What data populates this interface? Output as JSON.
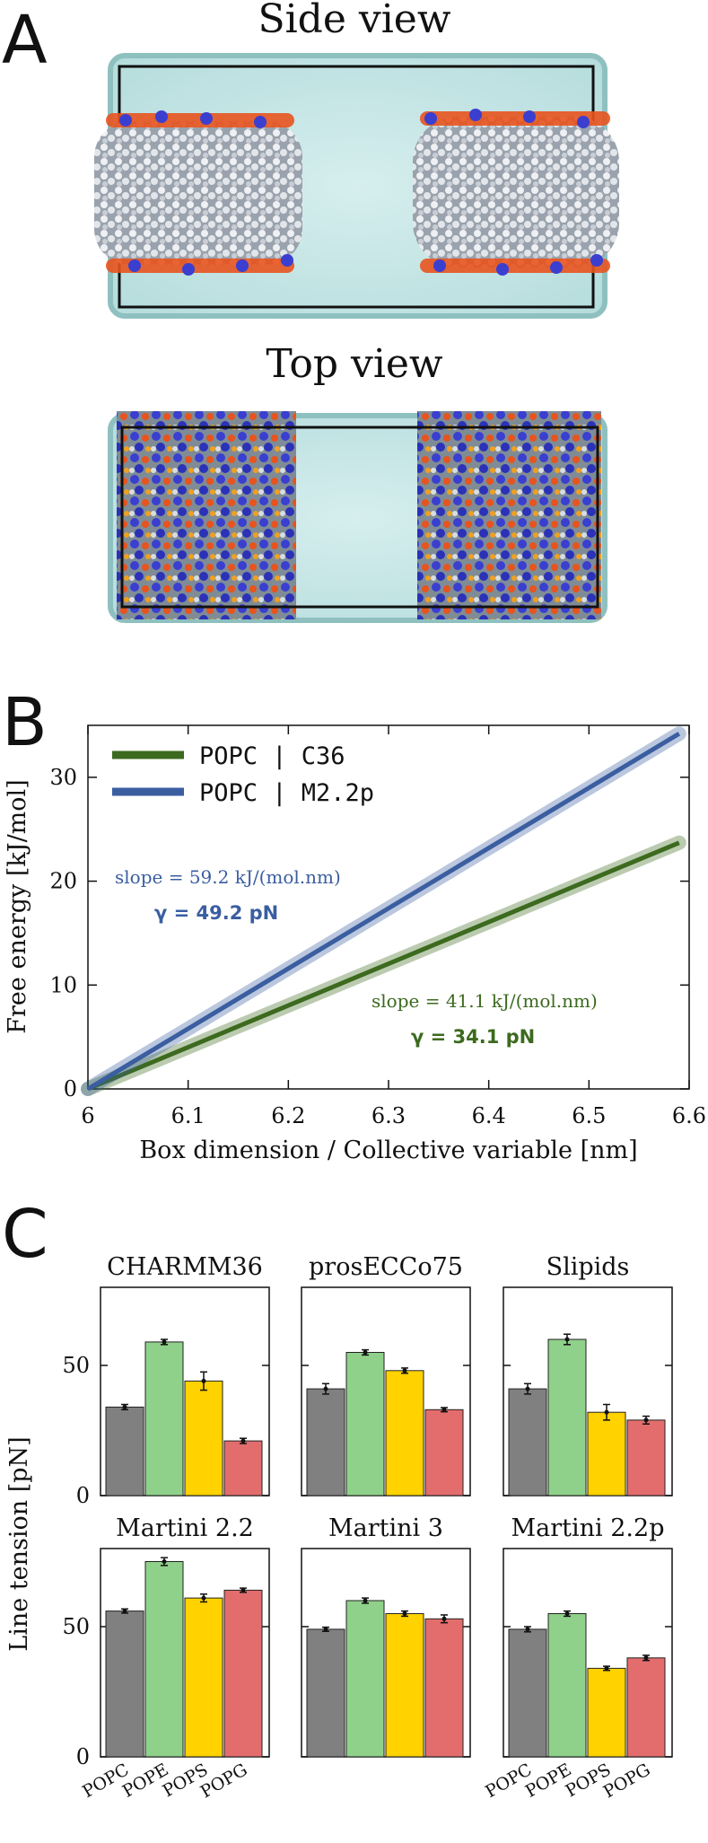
{
  "panel_a": {
    "letter": "A",
    "side_title": "Side view",
    "top_title": "Top view"
  },
  "panel_b": {
    "letter": "B",
    "annotation_blue_slope": "slope = 59.2 kJ/(mol.nm)",
    "annotation_blue_gamma": "γ = 49.2 pN",
    "annotation_green_slope": "slope = 41.1 kJ/(mol.nm)",
    "annotation_green_gamma": "γ = 34.1 pN",
    "colors": {
      "green": "#3c6a1e",
      "blue": "#3a5ea0"
    }
  },
  "panel_c": {
    "letter": "C",
    "colors": {
      "POPC": "#808080",
      "POPE": "#8fd18a",
      "POPS": "#ffd200",
      "POPG": "#e36d6d"
    }
  },
  "chart_data": [
    {
      "type": "line",
      "xlabel": "Box dimension / Collective variable [nm]",
      "ylabel": "Free energy [kJ/mol]",
      "xlim": [
        6.0,
        6.6
      ],
      "ylim": [
        0,
        35
      ],
      "xticks": [
        "6",
        "6.1",
        "6.2",
        "6.3",
        "6.4",
        "6.5",
        "6.6"
      ],
      "yticks": [
        "0",
        "10",
        "20",
        "30"
      ],
      "legend": "top-left",
      "series": [
        {
          "name": "POPC | C36",
          "x": [
            6.0,
            6.59
          ],
          "y": [
            0,
            23.7
          ]
        },
        {
          "name": "POPC | M2.2p",
          "x": [
            6.0,
            6.59
          ],
          "y": [
            0,
            34.2
          ]
        }
      ]
    },
    {
      "type": "bar",
      "ylabel": "Line tension [pN]",
      "categories": [
        "POPC",
        "POPE",
        "POPS",
        "POPG"
      ],
      "ylim": [
        0,
        80
      ],
      "yticks": [
        "0",
        "50"
      ],
      "subplots": [
        {
          "title": "CHARMM36",
          "values": [
            34,
            59,
            44,
            21
          ],
          "errors": [
            1,
            1,
            3.5,
            1
          ]
        },
        {
          "title": "prosECCo75",
          "values": [
            41,
            55,
            48,
            33
          ],
          "errors": [
            2,
            1,
            1,
            0.8
          ]
        },
        {
          "title": "Slipids",
          "values": [
            41,
            60,
            32,
            29
          ],
          "errors": [
            2,
            2,
            3,
            1.5
          ]
        },
        {
          "title": "Martini 2.2",
          "values": [
            56,
            75,
            61,
            64
          ],
          "errors": [
            0.8,
            1.5,
            1.5,
            0.8
          ]
        },
        {
          "title": "Martini 3",
          "values": [
            49,
            60,
            55,
            53
          ],
          "errors": [
            0.8,
            1,
            1,
            1.5
          ]
        },
        {
          "title": "Martini 2.2p",
          "values": [
            49,
            55,
            34,
            38
          ],
          "errors": [
            1,
            1,
            0.8,
            1
          ]
        }
      ]
    }
  ]
}
